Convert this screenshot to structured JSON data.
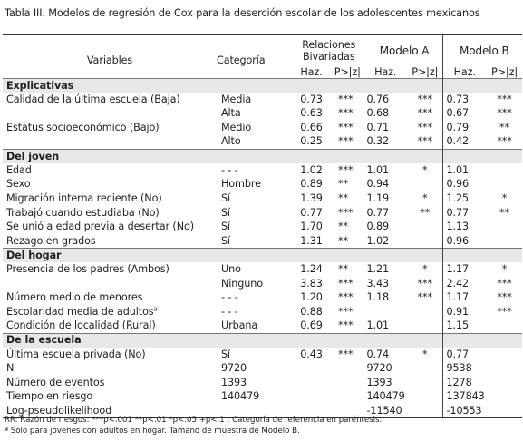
{
  "caption": "Tabla III. Modelos de regresión de Cox para la deserción escolar de los adolescentes mexicanos",
  "header": {
    "variables": "Variables",
    "categoria": "Categoría",
    "rel_biv": "Relaciones Bivariadas",
    "modelo_a": "Modelo A",
    "modelo_b": "Modelo B",
    "haz": "Haz.",
    "p": "P>|z|"
  },
  "rows": [
    {
      "type": "section",
      "label": "Explicativas"
    },
    {
      "var": "Calidad de la última escuela (Baja)",
      "cat": "Media",
      "b_h": "0.73",
      "b_p": "***",
      "a_h": "0.76",
      "a_p": "***",
      "m_h": "0.73",
      "m_p": "***"
    },
    {
      "var": "",
      "cat": "Alta",
      "b_h": "0.63",
      "b_p": "***",
      "a_h": "0.68",
      "a_p": "***",
      "m_h": "0.67",
      "m_p": "***"
    },
    {
      "var": "Estatus socioeconómico (Bajo)",
      "cat": "Medio",
      "b_h": "0.66",
      "b_p": "***",
      "a_h": "0.71",
      "a_p": "***",
      "m_h": "0.79",
      "m_p": "**"
    },
    {
      "var": "",
      "cat": "Alto",
      "b_h": "0.25",
      "b_p": "***",
      "a_h": "0.32",
      "a_p": "***",
      "m_h": "0.42",
      "m_p": "***"
    },
    {
      "type": "section",
      "label": "Del joven"
    },
    {
      "var": "Edad",
      "cat": "- - -",
      "b_h": "1.02",
      "b_p": "***",
      "a_h": "1.01",
      "a_p": "*",
      "m_h": "1.01",
      "m_p": ""
    },
    {
      "var": "Sexo",
      "cat": "Hombre",
      "b_h": "0.89",
      "b_p": "**",
      "a_h": "0.94",
      "a_p": "",
      "m_h": "0.96",
      "m_p": ""
    },
    {
      "var": "Migración interna reciente (No)",
      "cat": "Sí",
      "b_h": "1.39",
      "b_p": "**",
      "a_h": "1.19",
      "a_p": "*",
      "m_h": "1.25",
      "m_p": "*"
    },
    {
      "var": "Trabajó cuando estudiaba (No)",
      "cat": "Sí",
      "b_h": "0.77",
      "b_p": "***",
      "a_h": "0.77",
      "a_p": "**",
      "m_h": "0.77",
      "m_p": "**"
    },
    {
      "var": "Se unió a edad previa a desertar (No)",
      "cat": "Sí",
      "b_h": "1.70",
      "b_p": "**",
      "a_h": "0.89",
      "a_p": "",
      "m_h": "1.13",
      "m_p": ""
    },
    {
      "var": "Rezago en grados",
      "cat": "Sí",
      "b_h": "1.31",
      "b_p": "**",
      "a_h": "1.02",
      "a_p": "",
      "m_h": "0.96",
      "m_p": ""
    },
    {
      "type": "section",
      "label": "Del hogar"
    },
    {
      "var": "Presencia de los padres (Ambos)",
      "cat": "Uno",
      "b_h": "1.24",
      "b_p": "**",
      "a_h": "1.21",
      "a_p": "*",
      "m_h": "1.17",
      "m_p": "*"
    },
    {
      "var": "",
      "cat": "Ninguno",
      "b_h": "3.83",
      "b_p": "***",
      "a_h": "3.43",
      "a_p": "***",
      "m_h": "2.42",
      "m_p": "***"
    },
    {
      "var": "Número medio de menores",
      "cat": "- - -",
      "b_h": "1.20",
      "b_p": "***",
      "a_h": "1.18",
      "a_p": "***",
      "m_h": "1.17",
      "m_p": "***"
    },
    {
      "var": "Escolaridad media de adultos",
      "sup": "a",
      "cat": "- - -",
      "b_h": "0.88",
      "b_p": "***",
      "a_h": "",
      "a_p": "",
      "m_h": "0.91",
      "m_p": "***"
    },
    {
      "var": "Condición de localidad (Rural)",
      "cat": "Urbana",
      "b_h": "0.69",
      "b_p": "***",
      "a_h": "1.01",
      "a_p": "",
      "m_h": "1.15",
      "m_p": ""
    },
    {
      "type": "section",
      "label": "De la escuela"
    },
    {
      "var": "Última escuela privada (No)",
      "cat": "Sí",
      "b_h": "0.43",
      "b_p": "***",
      "a_h": "0.74",
      "a_p": "*",
      "m_h": "0.77",
      "m_p": ""
    },
    {
      "var": "N",
      "cat": "9720",
      "b_h": "",
      "b_p": "",
      "a_h": "9720",
      "a_p": "",
      "m_h": "9538",
      "m_p": ""
    },
    {
      "var": "Número de eventos",
      "cat": "1393",
      "b_h": "",
      "b_p": "",
      "a_h": "1393",
      "a_p": "",
      "m_h": "1278",
      "m_p": ""
    },
    {
      "var": "Tiempo  en riesgo",
      "cat": "140479",
      "b_h": "",
      "b_p": "",
      "a_h": "140479",
      "a_p": "",
      "m_h": "137843",
      "m_p": ""
    },
    {
      "var": "Log-pseudolikelihood",
      "cat": "",
      "b_h": "",
      "b_p": "",
      "a_h": "-11540",
      "a_p": "",
      "m_h": "-10553",
      "m_p": ""
    }
  ],
  "notes": [
    "RR: Razón de riesgos: ***p<.001  **p<.01  *p<.05  +p<.1 ; Categoría de referencia en paréntesis.",
    "ª Sólo para jóvenes con adultos en hogar. Tamaño de muestra de Modelo B."
  ]
}
